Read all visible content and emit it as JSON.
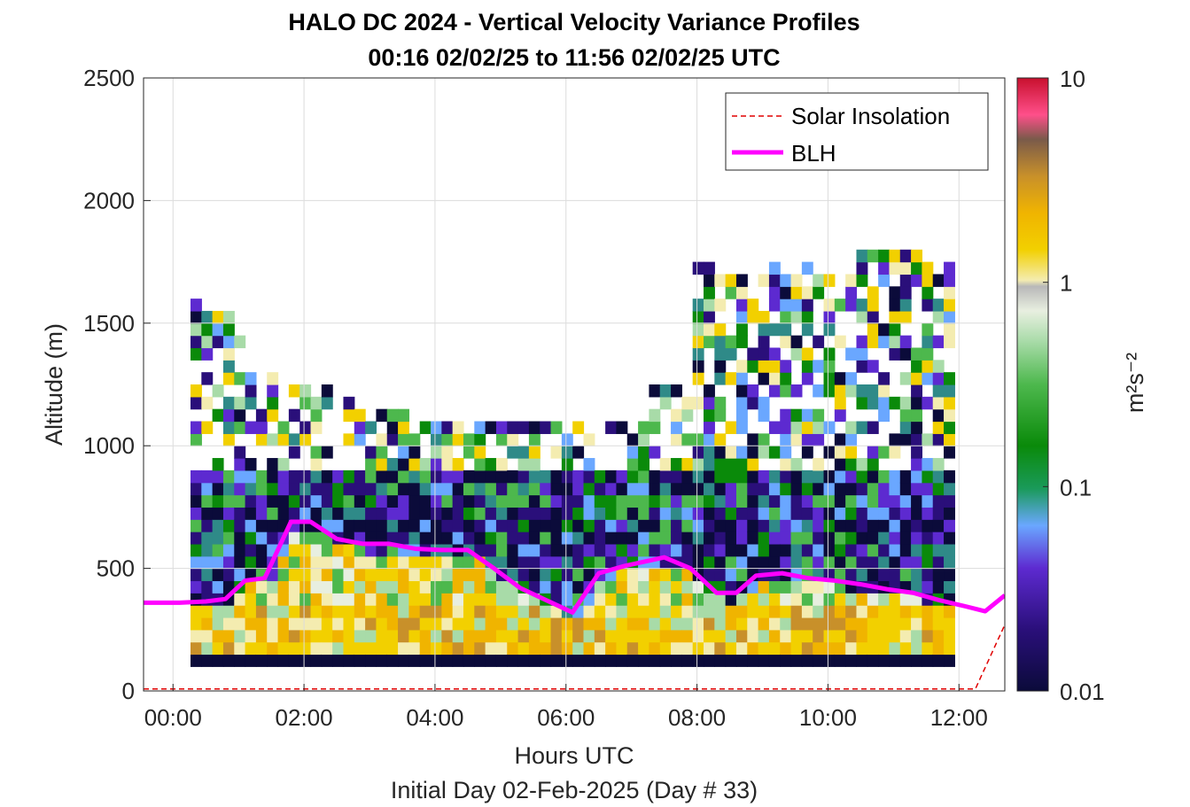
{
  "chart_data": {
    "type": "heatmap",
    "title": "HALO DC 2024 - Vertical Velocity Variance Profiles",
    "subtitle": "00:16 02/02/25 to 11:56 02/02/25  UTC",
    "xlabel": "Hours UTC",
    "xlabel2": "Initial Day 02-Feb-2025 (Day # 33)",
    "ylabel": "Altitude (m)",
    "xlim": [
      -0.45,
      12.7
    ],
    "ylim": [
      0,
      2500
    ],
    "x_ticks": [
      0,
      2,
      4,
      6,
      8,
      10,
      12
    ],
    "x_tick_labels": [
      "00:00",
      "02:00",
      "04:00",
      "06:00",
      "08:00",
      "10:00",
      "12:00"
    ],
    "y_ticks": [
      0,
      500,
      1000,
      1500,
      2000,
      2500
    ],
    "y_tick_labels": [
      "0",
      "500",
      "1000",
      "1500",
      "2000",
      "2500"
    ],
    "grid": true,
    "legend_position": "top-right",
    "colorbar": {
      "label": "m²s⁻²",
      "scale": "log",
      "range": [
        0.01,
        10
      ],
      "ticks": [
        0.01,
        0.1,
        1,
        10
      ],
      "tick_labels": [
        "0.01",
        "0.1",
        "1",
        "10"
      ]
    },
    "heatmap": {
      "time_start_hours": 0.267,
      "time_end_hours": 11.933,
      "altitude_start_m": 100,
      "altitude_end_m": 1850,
      "description_of_values": "variance (m^2 s^-2), log-scaled colormap",
      "near_surface_values_range": [
        0.3,
        1.0
      ],
      "mid_layer_values_range": [
        0.01,
        0.1
      ]
    },
    "series": [
      {
        "name": "Solar Insolation",
        "style": "dashed",
        "color": "#e00000",
        "x": [
          -0.45,
          12.25,
          12.7
        ],
        "y": [
          8,
          8,
          270
        ]
      },
      {
        "name": "BLH",
        "style": "solid",
        "color": "#ff00ff",
        "x": [
          -0.45,
          0.1,
          0.5,
          0.8,
          1.1,
          1.4,
          1.8,
          2.1,
          2.5,
          2.9,
          3.3,
          3.7,
          4.1,
          4.5,
          4.9,
          5.3,
          5.7,
          6.1,
          6.5,
          6.9,
          7.5,
          7.9,
          8.3,
          8.6,
          8.9,
          9.3,
          9.7,
          10.1,
          10.5,
          10.9,
          11.3,
          11.7,
          12.1,
          12.4,
          12.7
        ],
        "y": [
          360,
          360,
          365,
          375,
          450,
          460,
          690,
          690,
          620,
          600,
          600,
          580,
          575,
          575,
          500,
          420,
          370,
          320,
          480,
          510,
          545,
          500,
          400,
          400,
          470,
          480,
          460,
          450,
          435,
          415,
          400,
          370,
          345,
          325,
          390
        ]
      }
    ]
  }
}
